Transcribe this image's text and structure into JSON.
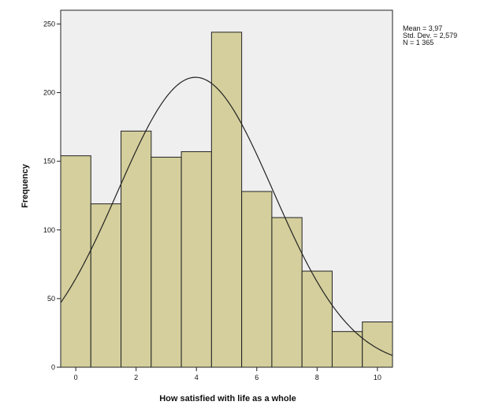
{
  "chart_data": {
    "type": "bar",
    "subtype": "histogram",
    "title": "",
    "xlabel": "How satisfied with life as a whole",
    "ylabel": "Frequency",
    "bins": [
      {
        "x": 0,
        "frequency": 154
      },
      {
        "x": 1,
        "frequency": 119
      },
      {
        "x": 2,
        "frequency": 172
      },
      {
        "x": 3,
        "frequency": 153
      },
      {
        "x": 4,
        "frequency": 157
      },
      {
        "x": 5,
        "frequency": 244
      },
      {
        "x": 6,
        "frequency": 128
      },
      {
        "x": 7,
        "frequency": 109
      },
      {
        "x": 8,
        "frequency": 70
      },
      {
        "x": 9,
        "frequency": 26
      },
      {
        "x": 10,
        "frequency": 33
      }
    ],
    "xlim": [
      -0.5,
      10.5
    ],
    "ylim": [
      0,
      260
    ],
    "x_ticks": [
      0,
      2,
      4,
      6,
      8,
      10
    ],
    "y_ticks": [
      0,
      50,
      100,
      150,
      200,
      250
    ],
    "normal_curve": {
      "mean": 3.97,
      "sd": 2.579,
      "n": 1365
    },
    "stats_text": [
      "Mean = 3,97",
      "Std. Dev. = 2,579",
      "N = 1 365"
    ],
    "grid": false,
    "legend": "none",
    "colors": {
      "bar_fill": "#d4cf9c",
      "bar_stroke": "#222222",
      "plot_background": "#efeff0",
      "curve": "#222222"
    }
  }
}
